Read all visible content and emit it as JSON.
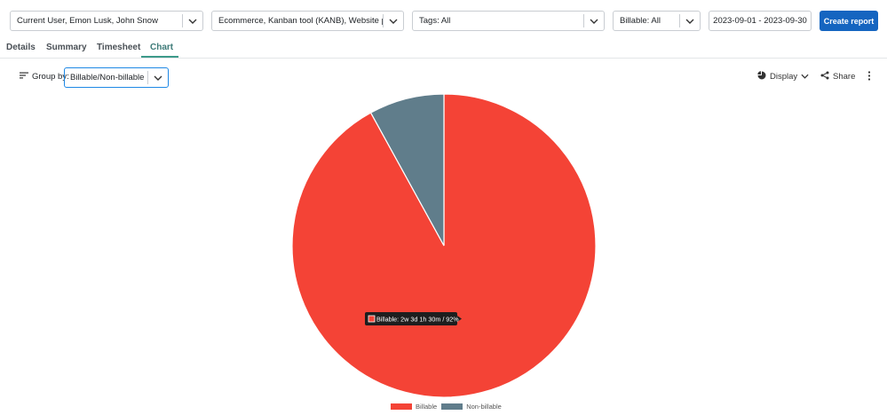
{
  "filters": {
    "users": "Current User, Emon Lusk, John Snow",
    "projects": "Ecommerce, Kanban tool (KANB), Website proj...",
    "tags": "Tags: All",
    "billable": "Billable: All",
    "date_range": "2023-09-01 - 2023-09-30",
    "create_label": "Create report"
  },
  "tabs": [
    {
      "label": "Details"
    },
    {
      "label": "Summary"
    },
    {
      "label": "Timesheet"
    },
    {
      "label": "Chart",
      "active": true
    }
  ],
  "groupby": {
    "label": "Group by:",
    "value": "Billable/Non-billable"
  },
  "toolbar": {
    "display_label": "Display",
    "share_label": "Share"
  },
  "tooltip": {
    "text": "Billable: 2w 3d 1h 30m / 92%"
  },
  "chart_data": {
    "type": "pie",
    "slices": [
      {
        "name": "Billable",
        "value": 92,
        "color": "#f44336"
      },
      {
        "name": "Non-billable",
        "value": 8,
        "color": "#607d8b"
      }
    ],
    "legend_position": "bottom"
  }
}
